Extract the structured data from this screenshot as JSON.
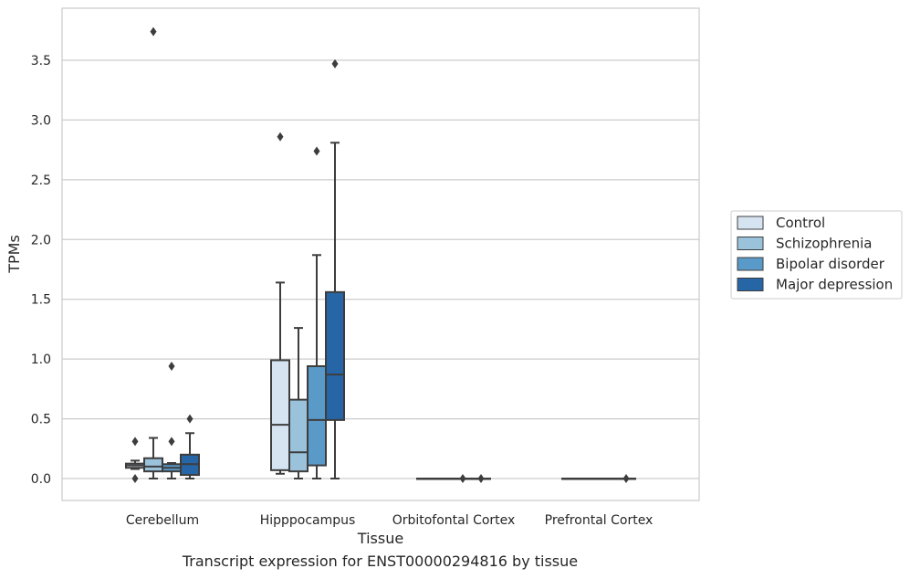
{
  "chart_data": {
    "type": "box",
    "xlabel": "Tissue",
    "ylabel": "TPMs",
    "caption": "Transcript expression for ENST00000294816 by tissue",
    "ylim": [
      -0.18,
      3.9
    ],
    "yticks": [
      "0.0",
      "0.5",
      "1.0",
      "1.5",
      "2.0",
      "2.5",
      "3.0",
      "3.5"
    ],
    "grid": "horizontal",
    "legend_position": "right",
    "categories": [
      "Cerebellum",
      "Hipppocampus",
      "Orbitofontal Cortex",
      "Prefrontal Cortex"
    ],
    "series": [
      {
        "name": "Control",
        "color": "#d6e4f2",
        "boxes": [
          {
            "whislo": 0.08,
            "q1": 0.09,
            "med": 0.11,
            "q3": 0.125,
            "whishi": 0.15,
            "fliers": [
              0.31,
              0.0
            ]
          },
          {
            "whislo": 0.04,
            "q1": 0.07,
            "med": 0.45,
            "q3": 0.99,
            "whishi": 1.64,
            "fliers": [
              2.86
            ]
          },
          {
            "whislo": 0.0,
            "q1": 0.0,
            "med": 0.0,
            "q3": 0.0,
            "whishi": 0.0,
            "fliers": []
          },
          {
            "whislo": 0.0,
            "q1": 0.0,
            "med": 0.0,
            "q3": 0.0,
            "whishi": 0.0,
            "fliers": []
          }
        ]
      },
      {
        "name": "Schizophrenia",
        "color": "#9bc2db",
        "boxes": [
          {
            "whislo": 0.0,
            "q1": 0.06,
            "med": 0.1,
            "q3": 0.17,
            "whishi": 0.34,
            "fliers": [
              3.74
            ]
          },
          {
            "whislo": 0.0,
            "q1": 0.06,
            "med": 0.22,
            "q3": 0.66,
            "whishi": 1.26,
            "fliers": []
          },
          {
            "whislo": 0.0,
            "q1": 0.0,
            "med": 0.0,
            "q3": 0.0,
            "whishi": 0.0,
            "fliers": []
          },
          {
            "whislo": 0.0,
            "q1": 0.0,
            "med": 0.0,
            "q3": 0.0,
            "whishi": 0.0,
            "fliers": []
          }
        ]
      },
      {
        "name": "Bipolar disorder",
        "color": "#5a9ac8",
        "boxes": [
          {
            "whislo": 0.0,
            "q1": 0.06,
            "med": 0.09,
            "q3": 0.12,
            "whishi": 0.13,
            "fliers": [
              0.94,
              0.31
            ]
          },
          {
            "whislo": 0.0,
            "q1": 0.11,
            "med": 0.49,
            "q3": 0.94,
            "whishi": 1.87,
            "fliers": [
              2.74
            ]
          },
          {
            "whislo": 0.0,
            "q1": 0.0,
            "med": 0.0,
            "q3": 0.0,
            "whishi": 0.0,
            "fliers": [
              0.0
            ]
          },
          {
            "whislo": 0.0,
            "q1": 0.0,
            "med": 0.0,
            "q3": 0.0,
            "whishi": 0.0,
            "fliers": []
          }
        ]
      },
      {
        "name": "Major depression",
        "color": "#2665a6",
        "boxes": [
          {
            "whislo": 0.0,
            "q1": 0.03,
            "med": 0.12,
            "q3": 0.2,
            "whishi": 0.38,
            "fliers": [
              0.5
            ]
          },
          {
            "whislo": 0.0,
            "q1": 0.49,
            "med": 0.87,
            "q3": 1.56,
            "whishi": 2.81,
            "fliers": [
              3.47
            ]
          },
          {
            "whislo": 0.0,
            "q1": 0.0,
            "med": 0.0,
            "q3": 0.0,
            "whishi": 0.0,
            "fliers": [
              0.0
            ]
          },
          {
            "whislo": 0.0,
            "q1": 0.0,
            "med": 0.0,
            "q3": 0.0,
            "whishi": 0.0,
            "fliers": [
              0.0
            ]
          }
        ]
      }
    ]
  }
}
